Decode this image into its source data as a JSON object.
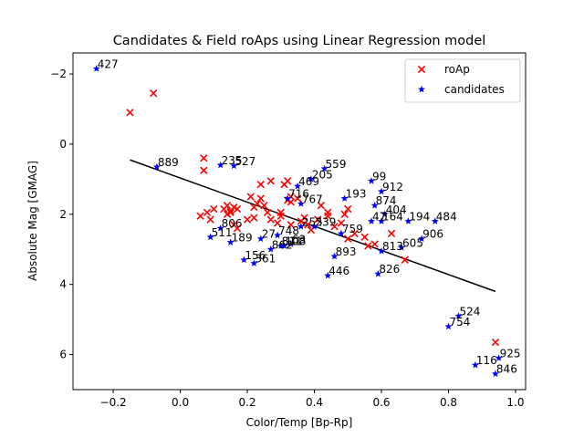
{
  "chart_data": {
    "type": "scatter",
    "title": "Candidates & Field roAps using Linear Regression model",
    "xlabel": "Color/Temp [Bp-Rp]",
    "ylabel": "Absolute Mag [GMAG]",
    "xlim": [
      -0.32,
      1.03
    ],
    "ylim": [
      7.0,
      -2.6
    ],
    "y_inverted": true,
    "x_ticks": [
      -0.2,
      0.0,
      0.2,
      0.4,
      0.6,
      0.8,
      1.0
    ],
    "x_tick_labels": [
      "−0.2",
      "0.0",
      "0.2",
      "0.4",
      "0.6",
      "0.8",
      "1.0"
    ],
    "y_ticks": [
      -2,
      0,
      2,
      4,
      6
    ],
    "y_tick_labels": [
      "−2",
      "0",
      "2",
      "4",
      "6"
    ],
    "grid": false,
    "legend_position": "top-right",
    "colors": {
      "roap": "#ff0000",
      "candidates": "#0000ff",
      "fit": "#000000"
    },
    "series": [
      {
        "name": "roAp",
        "marker": "x",
        "points": [
          [
            -0.08,
            -1.45
          ],
          [
            -0.15,
            -0.9
          ],
          [
            0.07,
            0.4
          ],
          [
            0.07,
            0.75
          ],
          [
            0.06,
            2.05
          ],
          [
            0.08,
            1.95
          ],
          [
            0.09,
            2.15
          ],
          [
            0.1,
            1.85
          ],
          [
            0.13,
            1.85
          ],
          [
            0.14,
            1.75
          ],
          [
            0.15,
            1.9
          ],
          [
            0.14,
            2.0
          ],
          [
            0.16,
            1.8
          ],
          [
            0.15,
            1.95
          ],
          [
            0.17,
            1.85
          ],
          [
            0.16,
            2.3
          ],
          [
            0.17,
            2.4
          ],
          [
            0.2,
            2.15
          ],
          [
            0.21,
            1.5
          ],
          [
            0.22,
            2.1
          ],
          [
            0.22,
            1.8
          ],
          [
            0.24,
            1.55
          ],
          [
            0.24,
            1.15
          ],
          [
            0.25,
            1.75
          ],
          [
            0.23,
            1.7
          ],
          [
            0.26,
            1.95
          ],
          [
            0.27,
            2.15
          ],
          [
            0.27,
            1.05
          ],
          [
            0.29,
            2.25
          ],
          [
            0.3,
            1.95
          ],
          [
            0.3,
            2.05
          ],
          [
            0.31,
            1.15
          ],
          [
            0.32,
            1.05
          ],
          [
            0.32,
            1.6
          ],
          [
            0.33,
            1.65
          ],
          [
            0.33,
            1.5
          ],
          [
            0.33,
            2.3
          ],
          [
            0.35,
            1.55
          ],
          [
            0.36,
            2.2
          ],
          [
            0.37,
            2.1
          ],
          [
            0.38,
            2.3
          ],
          [
            0.39,
            2.45
          ],
          [
            0.41,
            2.15
          ],
          [
            0.42,
            1.75
          ],
          [
            0.44,
            1.95
          ],
          [
            0.44,
            2.05
          ],
          [
            0.46,
            2.35
          ],
          [
            0.48,
            2.25
          ],
          [
            0.49,
            2.0
          ],
          [
            0.5,
            1.85
          ],
          [
            0.5,
            2.7
          ],
          [
            0.52,
            2.55
          ],
          [
            0.55,
            2.65
          ],
          [
            0.56,
            2.9
          ],
          [
            0.58,
            2.85
          ],
          [
            0.63,
            2.55
          ],
          [
            0.67,
            3.3
          ],
          [
            0.94,
            5.65
          ]
        ]
      },
      {
        "name": "candidates",
        "marker": "star",
        "points": [
          {
            "x": -0.25,
            "y": -2.15,
            "label": "427"
          },
          {
            "x": -0.07,
            "y": 0.65,
            "label": "889"
          },
          {
            "x": 0.12,
            "y": 0.6,
            "label": "235"
          },
          {
            "x": 0.16,
            "y": 0.62,
            "label": "527"
          },
          {
            "x": 0.43,
            "y": 0.7,
            "label": "559"
          },
          {
            "x": 0.39,
            "y": 1.0,
            "label": "205"
          },
          {
            "x": 0.35,
            "y": 1.2,
            "label": "469"
          },
          {
            "x": 0.57,
            "y": 1.05,
            "label": "99"
          },
          {
            "x": 0.6,
            "y": 1.35,
            "label": "912"
          },
          {
            "x": 0.49,
            "y": 1.55,
            "label": "193"
          },
          {
            "x": 0.32,
            "y": 1.55,
            "label": "716"
          },
          {
            "x": 0.36,
            "y": 1.7,
            "label": "767"
          },
          {
            "x": 0.58,
            "y": 1.75,
            "label": "874"
          },
          {
            "x": 0.61,
            "y": 2.0,
            "label": "404"
          },
          {
            "x": 0.57,
            "y": 2.2,
            "label": "47"
          },
          {
            "x": 0.6,
            "y": 2.2,
            "label": "164"
          },
          {
            "x": 0.68,
            "y": 2.2,
            "label": "194"
          },
          {
            "x": 0.76,
            "y": 2.2,
            "label": "484"
          },
          {
            "x": 0.12,
            "y": 2.4,
            "label": "806"
          },
          {
            "x": 0.4,
            "y": 2.35,
            "label": "239"
          },
          {
            "x": 0.36,
            "y": 2.35,
            "label": "255"
          },
          {
            "x": 0.09,
            "y": 2.65,
            "label": "511"
          },
          {
            "x": 0.15,
            "y": 2.8,
            "label": "189"
          },
          {
            "x": 0.24,
            "y": 2.7,
            "label": "27"
          },
          {
            "x": 0.29,
            "y": 2.6,
            "label": "748"
          },
          {
            "x": 0.31,
            "y": 2.9,
            "label": "108"
          },
          {
            "x": 0.33,
            "y": 2.85,
            "label": "63"
          },
          {
            "x": 0.48,
            "y": 2.55,
            "label": "759"
          },
          {
            "x": 0.72,
            "y": 2.7,
            "label": "906"
          },
          {
            "x": 0.66,
            "y": 2.95,
            "label": "605"
          },
          {
            "x": 0.6,
            "y": 3.05,
            "label": "813"
          },
          {
            "x": 0.27,
            "y": 3.0,
            "label": "862"
          },
          {
            "x": 0.3,
            "y": 2.9,
            "label": "811"
          },
          {
            "x": 0.46,
            "y": 3.2,
            "label": "893"
          },
          {
            "x": 0.19,
            "y": 3.3,
            "label": "156"
          },
          {
            "x": 0.22,
            "y": 3.4,
            "label": "361"
          },
          {
            "x": 0.59,
            "y": 3.7,
            "label": "826"
          },
          {
            "x": 0.44,
            "y": 3.75,
            "label": "446"
          },
          {
            "x": 0.83,
            "y": 4.9,
            "label": "524"
          },
          {
            "x": 0.8,
            "y": 5.2,
            "label": "754"
          },
          {
            "x": 0.95,
            "y": 6.1,
            "label": "925"
          },
          {
            "x": 0.88,
            "y": 6.3,
            "label": "116"
          },
          {
            "x": 0.94,
            "y": 6.55,
            "label": "846"
          }
        ]
      }
    ],
    "fit_line": {
      "x": [
        -0.15,
        0.94
      ],
      "y": [
        0.45,
        4.2
      ]
    }
  }
}
